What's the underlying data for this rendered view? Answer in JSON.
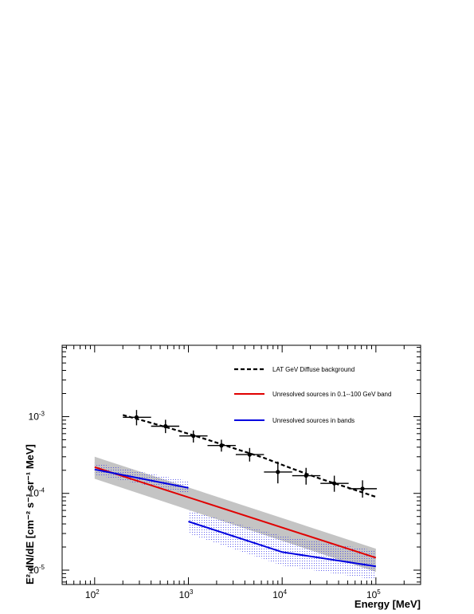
{
  "chart_data": {
    "type": "line",
    "xlabel": "Energy [MeV]",
    "ylabel": "E² dN/dE [cm⁻² s⁻¹ sr⁻¹ MeV]",
    "x_scale": "log",
    "y_scale": "log",
    "xlim": [
      45,
      300000
    ],
    "ylim": [
      6.5e-06,
      0.0085
    ],
    "x_ticks": [
      {
        "value": 100,
        "base": "10",
        "exp": "2"
      },
      {
        "value": 1000,
        "base": "10",
        "exp": "3"
      },
      {
        "value": 10000,
        "base": "10",
        "exp": "4"
      },
      {
        "value": 100000,
        "base": "10",
        "exp": "5"
      }
    ],
    "y_ticks": [
      {
        "value": 1e-05,
        "base": "10",
        "exp": "-5"
      },
      {
        "value": 0.0001,
        "base": "10",
        "exp": "-4"
      },
      {
        "value": 0.001,
        "base": "10",
        "exp": "-3"
      }
    ],
    "grid": false,
    "legend_position": "top-right",
    "colors": {
      "black": "#000000",
      "red": "#e00000",
      "blue": "#0000e0",
      "gray_band": "#c4c4c4",
      "blue_hatch": "#3a3ae8"
    },
    "legend": [
      {
        "label": "LAT GeV Diffuse background",
        "style": "dashed",
        "color": "#000000"
      },
      {
        "label": "Unresolved sources in 0.1--100 GeV band",
        "style": "solid",
        "color": "#e00000"
      },
      {
        "label": "Unresolved sources in bands",
        "style": "solid",
        "color": "#0000e0"
      }
    ],
    "series": [
      {
        "kind": "points",
        "color": "#000000",
        "points": [
          {
            "x": 280,
            "y": 0.00098,
            "xlo": 200,
            "xhi": 400,
            "ylo": 0.00077,
            "yhi": 0.00122
          },
          {
            "x": 570,
            "y": 0.00075,
            "xlo": 400,
            "xhi": 800,
            "ylo": 0.00061,
            "yhi": 0.00091
          },
          {
            "x": 1130,
            "y": 0.00056,
            "xlo": 800,
            "xhi": 1600,
            "ylo": 0.00046,
            "yhi": 0.00066
          },
          {
            "x": 2250,
            "y": 0.00042,
            "xlo": 1600,
            "xhi": 3200,
            "ylo": 0.00035,
            "yhi": 0.0005
          },
          {
            "x": 4500,
            "y": 0.00032,
            "xlo": 3200,
            "xhi": 6400,
            "ylo": 0.00026,
            "yhi": 0.00039
          },
          {
            "x": 9000,
            "y": 0.00019,
            "xlo": 6400,
            "xhi": 12800,
            "ylo": 0.000135,
            "yhi": 0.00026
          },
          {
            "x": 18000,
            "y": 0.00017,
            "xlo": 12800,
            "xhi": 25600,
            "ylo": 0.00013,
            "yhi": 0.000215
          },
          {
            "x": 36000,
            "y": 0.000135,
            "xlo": 25600,
            "xhi": 51200,
            "ylo": 0.000105,
            "yhi": 0.00017
          },
          {
            "x": 72000,
            "y": 0.000115,
            "xlo": 51200,
            "xhi": 102400,
            "ylo": 8.8e-05,
            "yhi": 0.000148
          }
        ]
      },
      {
        "kind": "dashed",
        "color": "#000000",
        "points": [
          [
            200,
            0.00105
          ],
          [
            400,
            0.00083
          ],
          [
            800,
            0.00065
          ],
          [
            1600,
            0.0005
          ],
          [
            3200,
            0.00038
          ],
          [
            6400,
            0.00029
          ],
          [
            12800,
            0.00021
          ],
          [
            25600,
            0.000155
          ],
          [
            51200,
            0.000118
          ],
          [
            100000,
            9e-05
          ]
        ]
      },
      {
        "kind": "band",
        "color": "#c4c4c4",
        "points": [
          [
            100,
            0.0003,
            0.000155
          ],
          [
            100000,
            1.9e-05,
            9.5e-06
          ]
        ]
      },
      {
        "kind": "solid",
        "color": "#e00000",
        "points": [
          [
            100,
            0.00022
          ],
          [
            100000,
            1.45e-05
          ]
        ]
      },
      {
        "kind": "hatch",
        "color": "#3a3ae8",
        "points": [
          [
            100,
            0.00025,
            0.000175
          ],
          [
            1000,
            0.000145,
            9.95e-05
          ]
        ]
      },
      {
        "kind": "hatch",
        "color": "#3a3ae8",
        "points": [
          [
            1000,
            6e-05,
            3e-05
          ],
          [
            10000,
            2.8e-05,
            1.15e-05
          ],
          [
            100000,
            1.8e-05,
            7.5e-06
          ]
        ]
      },
      {
        "kind": "solid",
        "color": "#0000e0",
        "points": [
          [
            100,
            0.000205
          ],
          [
            1000,
            0.000118
          ]
        ]
      },
      {
        "kind": "solid",
        "color": "#0000e0",
        "points": [
          [
            1000,
            4.3e-05
          ],
          [
            10000,
            1.72e-05
          ],
          [
            100000,
            1.12e-05
          ]
        ]
      }
    ]
  }
}
